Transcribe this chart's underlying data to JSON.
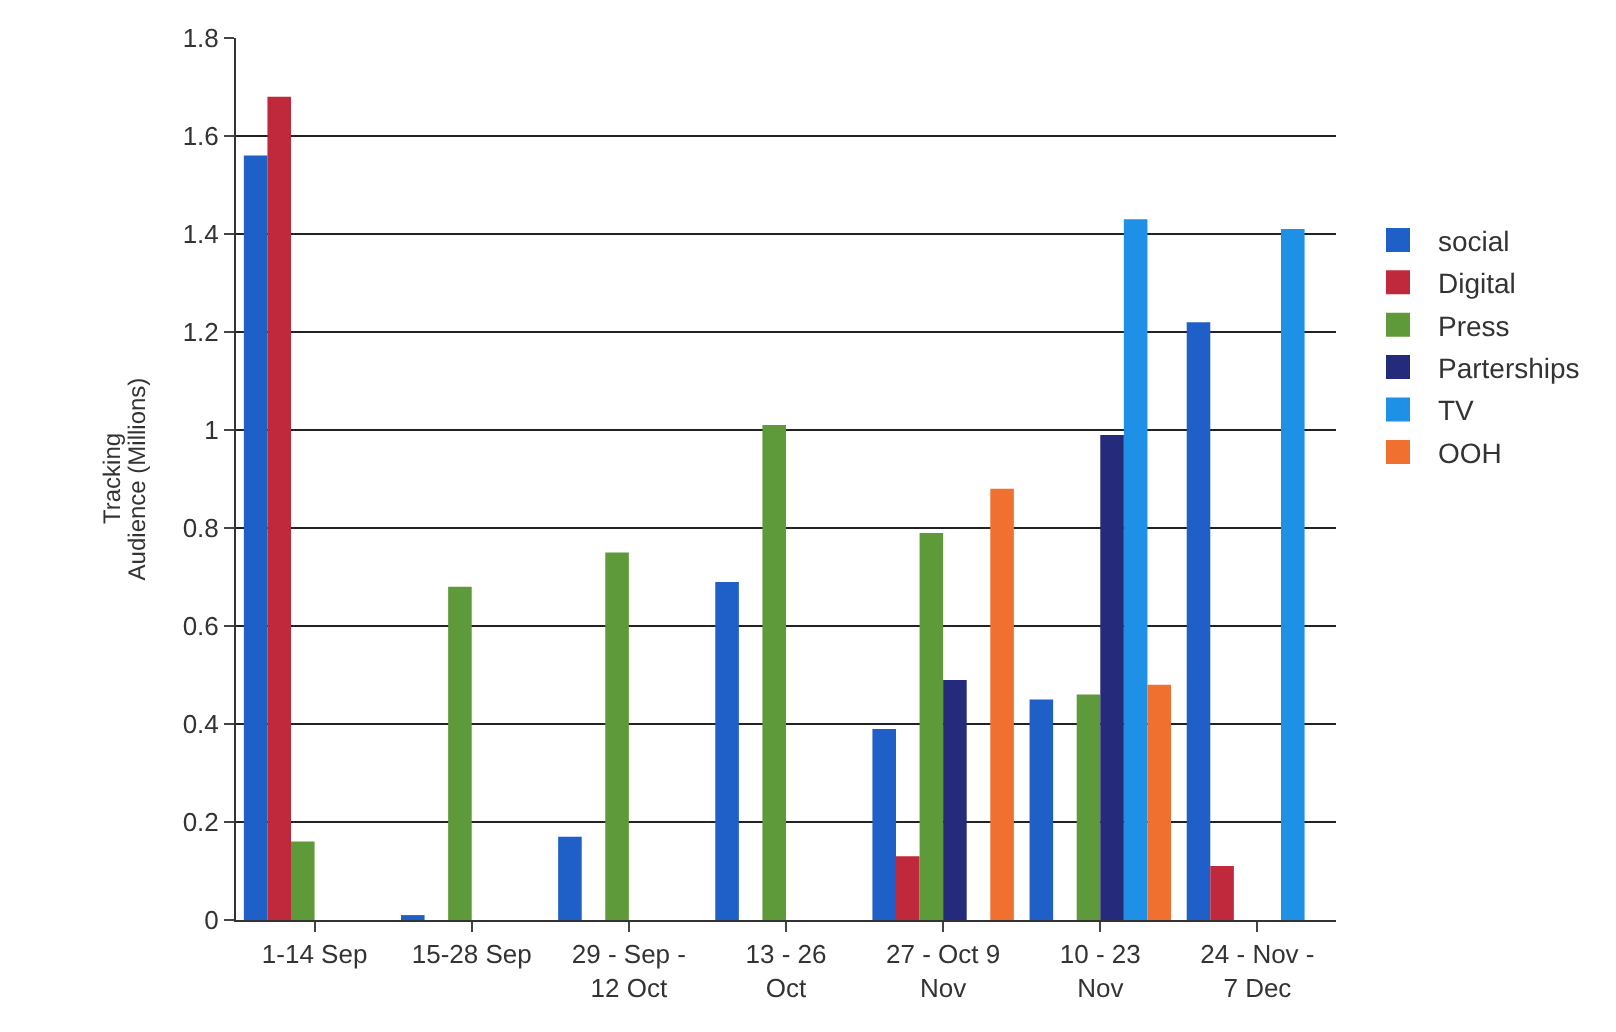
{
  "chart_data": {
    "type": "bar",
    "ylabel": "Audience (Millions)",
    "annotations": [
      "Tracking"
    ],
    "categories": [
      "1-14 Sep",
      "15-28 Sep",
      "29 - Sep - 12 Oct",
      "13 - 26 Oct",
      "27 - Oct 9 Nov",
      "10 - 23 Nov",
      "24 - Nov - 7 Dec"
    ],
    "series": [
      {
        "name": "social",
        "color": "#1f5fc8",
        "values": [
          1.56,
          0.01,
          0.17,
          0.69,
          0.39,
          0.45,
          1.22
        ]
      },
      {
        "name": "Digital",
        "color": "#c0283c",
        "values": [
          1.68,
          null,
          null,
          null,
          0.13,
          null,
          0.11
        ]
      },
      {
        "name": "Press",
        "color": "#5f9a3a",
        "values": [
          0.16,
          0.68,
          0.75,
          1.01,
          0.79,
          0.46,
          null
        ]
      },
      {
        "name": "Parterships",
        "color": "#262a7a",
        "values": [
          null,
          null,
          null,
          null,
          0.49,
          0.99,
          null
        ]
      },
      {
        "name": "TV",
        "color": "#1e90e6",
        "values": [
          null,
          null,
          null,
          null,
          null,
          1.43,
          1.41
        ]
      },
      {
        "name": "OOH",
        "color": "#f07030",
        "values": [
          null,
          null,
          null,
          null,
          0.88,
          0.48,
          null
        ]
      }
    ],
    "ylim": [
      0,
      1.8
    ],
    "yticks": [
      0,
      0.2,
      0.4,
      0.6,
      0.8,
      1,
      1.2,
      1.4,
      1.6,
      1.8
    ],
    "grid": "y",
    "legend": "right"
  }
}
